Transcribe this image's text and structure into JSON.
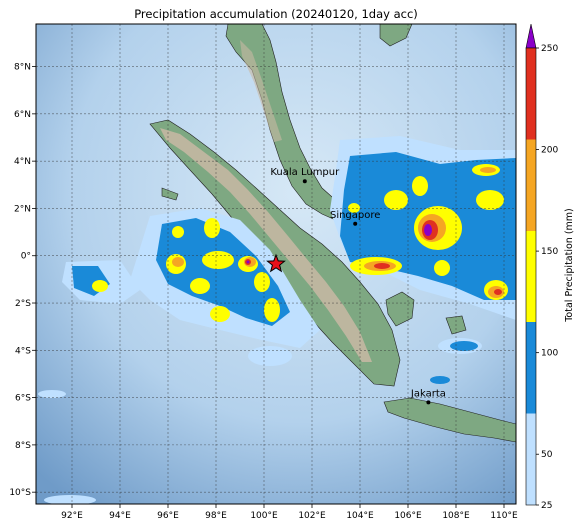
{
  "title": "Precipitation accumulation (20240120, 1day acc)",
  "map": {
    "lon_range": [
      90.5,
      110.5
    ],
    "lat_range": [
      -10.5,
      9.8
    ],
    "x_ticks": [
      {
        "value": 92,
        "label": "92°E"
      },
      {
        "value": 94,
        "label": "94°E"
      },
      {
        "value": 96,
        "label": "96°E"
      },
      {
        "value": 98,
        "label": "98°E"
      },
      {
        "value": 100,
        "label": "100°E"
      },
      {
        "value": 102,
        "label": "102°E"
      },
      {
        "value": 104,
        "label": "104°E"
      },
      {
        "value": 106,
        "label": "106°E"
      },
      {
        "value": 108,
        "label": "108°E"
      },
      {
        "value": 110,
        "label": "110°E"
      }
    ],
    "y_ticks": [
      {
        "value": 8,
        "label": "8°N"
      },
      {
        "value": 6,
        "label": "6°N"
      },
      {
        "value": 4,
        "label": "4°N"
      },
      {
        "value": 2,
        "label": "2°N"
      },
      {
        "value": 0,
        "label": "0°"
      },
      {
        "value": -2,
        "label": "2°S"
      },
      {
        "value": -4,
        "label": "4°S"
      },
      {
        "value": -6,
        "label": "6°S"
      },
      {
        "value": -8,
        "label": "8°S"
      },
      {
        "value": -10,
        "label": "10°S"
      }
    ],
    "gridlines": true,
    "cities": [
      {
        "name": "Kuala Lumpur",
        "lon": 101.7,
        "lat": 3.15
      },
      {
        "name": "Singapore",
        "lon": 103.8,
        "lat": 1.35
      },
      {
        "name": "Jakarta",
        "lon": 106.85,
        "lat": -6.2
      }
    ],
    "marker": {
      "symbol": "star",
      "lon": 100.5,
      "lat": -0.35,
      "color": "#e8101a"
    }
  },
  "colorbar": {
    "label": "Total Precipitation (mm)",
    "ticks": [
      "25",
      "50",
      "100",
      "150",
      "200",
      "250"
    ],
    "levels": [
      25,
      50,
      100,
      150,
      200,
      250
    ],
    "colors": [
      "#bfe0ff",
      "#1a8ad8",
      "#ffff00",
      "#f5a623",
      "#e03020"
    ],
    "extend_color": "#8a00c8"
  },
  "colors": {
    "ocean": "#9fc4e4",
    "land": "#7ea882",
    "highland": "#c8b9a4",
    "rain_light": "#bfe0ff",
    "rain_moderate": "#1a8ad8",
    "rain_heavy": "#ffff00",
    "rain_very_heavy": "#f5a623",
    "rain_extreme": "#e03020",
    "rain_max": "#8a00c8"
  }
}
